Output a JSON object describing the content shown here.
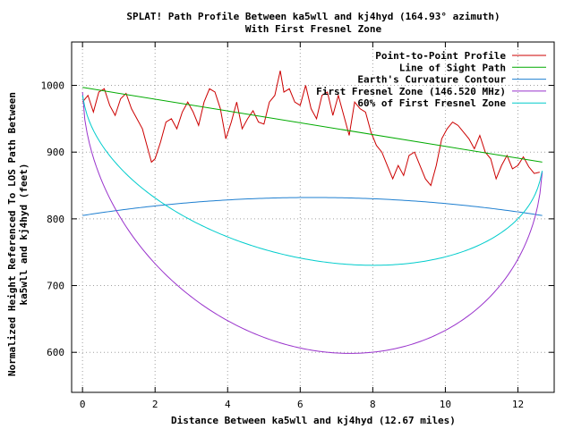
{
  "chart_data": {
    "type": "line",
    "title": "SPLAT! Path Profile Between ka5wll and kj4hyd (164.93° azimuth)",
    "subtitle": "With First Fresnel Zone",
    "xlabel": "Distance Between ka5wll and kj4hyd (12.67 miles)",
    "ylabel_line1": "Normalized Height Referenced To LOS Path Between",
    "ylabel_line2": "ka5wll and kj4hyd (feet)",
    "xlim": [
      -0.3,
      13.0
    ],
    "ylim": [
      540,
      1065
    ],
    "xticks": [
      0,
      2,
      4,
      6,
      8,
      10,
      12
    ],
    "yticks": [
      600,
      700,
      800,
      900,
      1000
    ],
    "grid": true,
    "legend_position": "top-right",
    "path_length": 12.67,
    "series": [
      {
        "name": "Point-to-Point Profile",
        "color": "#cc0000",
        "x": [
          0,
          0.15,
          0.3,
          0.45,
          0.6,
          0.75,
          0.9,
          1.05,
          1.2,
          1.35,
          1.5,
          1.65,
          1.8,
          1.9,
          2.0,
          2.15,
          2.3,
          2.45,
          2.6,
          2.75,
          2.9,
          3.05,
          3.2,
          3.35,
          3.5,
          3.65,
          3.8,
          3.95,
          4.1,
          4.25,
          4.4,
          4.55,
          4.7,
          4.85,
          5.0,
          5.15,
          5.3,
          5.45,
          5.55,
          5.7,
          5.85,
          6.0,
          6.15,
          6.3,
          6.45,
          6.6,
          6.75,
          6.9,
          7.05,
          7.2,
          7.35,
          7.5,
          7.65,
          7.8,
          7.95,
          8.1,
          8.25,
          8.4,
          8.55,
          8.7,
          8.85,
          9.0,
          9.15,
          9.3,
          9.45,
          9.6,
          9.75,
          9.9,
          10.05,
          10.2,
          10.35,
          10.5,
          10.65,
          10.8,
          10.95,
          11.1,
          11.25,
          11.4,
          11.55,
          11.7,
          11.85,
          12.0,
          12.15,
          12.3,
          12.45,
          12.6
        ],
        "y": [
          975,
          985,
          960,
          990,
          995,
          970,
          955,
          980,
          988,
          965,
          950,
          935,
          905,
          885,
          890,
          915,
          945,
          950,
          935,
          960,
          975,
          960,
          940,
          975,
          995,
          990,
          965,
          920,
          945,
          975,
          935,
          950,
          962,
          945,
          942,
          975,
          985,
          1022,
          990,
          995,
          975,
          970,
          1000,
          965,
          950,
          985,
          990,
          955,
          985,
          955,
          925,
          975,
          965,
          960,
          930,
          910,
          900,
          880,
          860,
          880,
          865,
          895,
          900,
          880,
          860,
          850,
          880,
          920,
          935,
          945,
          940,
          930,
          920,
          905,
          925,
          900,
          890,
          860,
          880,
          895,
          875,
          880,
          893,
          878,
          868,
          870
        ]
      },
      {
        "name": "Line of Sight Path",
        "color": "#00aa00",
        "x": [
          0,
          12.67
        ],
        "y": [
          997,
          885
        ]
      },
      {
        "name": "Earth's Curvature Contour",
        "color": "#1e7fd0",
        "curve": "parabola",
        "endpoints": [
          805,
          805
        ],
        "peak": 832
      },
      {
        "name": "First Fresnel Zone (146.520 MHz)",
        "color": "#9933cc",
        "curve": "fresnel",
        "radius_at_midpoint": 338,
        "start_value": 990,
        "end_value": 870
      },
      {
        "name": "60% of First Fresnel Zone",
        "color": "#00cccc",
        "curve": "fresnel",
        "radius_at_midpoint": 203,
        "start_value": 985,
        "end_value": 872
      }
    ]
  }
}
